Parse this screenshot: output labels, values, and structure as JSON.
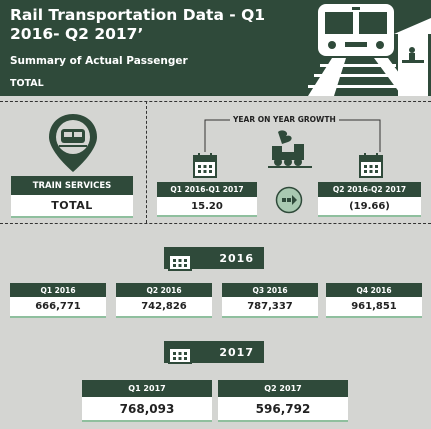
{
  "header": {
    "title": "Rail Transportation Data - Q1 2016- Q2 2017’",
    "subtitle": "Summary of Actual Passenger",
    "tag": "TOTAL"
  },
  "services": {
    "heading": "TRAIN SERVICES",
    "value": "TOTAL"
  },
  "growth": {
    "label": "YEAR ON YEAR GROWTH",
    "periods": [
      {
        "label": "Q1 2016-Q1 2017",
        "value": "15.20"
      },
      {
        "label": "Q2 2016-Q2 2017",
        "value": "(19.66)"
      }
    ]
  },
  "year_2016": {
    "label": "2016",
    "quarters": [
      {
        "label": "Q1 2016",
        "value": "666,771"
      },
      {
        "label": "Q2 2016",
        "value": "742,826"
      },
      {
        "label": "Q3 2016",
        "value": "787,337"
      },
      {
        "label": "Q4 2016",
        "value": "961,851"
      }
    ]
  },
  "year_2017": {
    "label": "2017",
    "quarters": [
      {
        "label": "Q1 2017",
        "value": "768,093"
      },
      {
        "label": "Q2 2017",
        "value": "596,792"
      }
    ]
  },
  "colors": {
    "primary": "#2f4a3a",
    "background": "#d4d5d2",
    "accent": "#8fbf9e"
  }
}
